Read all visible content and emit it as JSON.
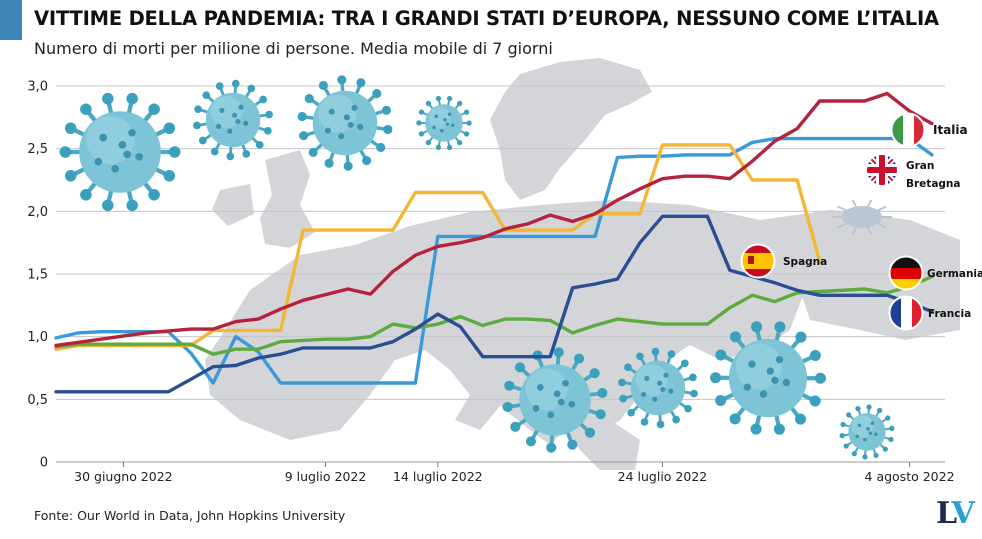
{
  "header": {
    "title": "VITTIME DELLA PANDEMIA: TRA I GRANDI STATI D’EUROPA, NESSUNO COME L’ITALIA",
    "subtitle": "Numero di morti per milione di persone. Media mobile di 7 giorni",
    "accent_color": "#3f86b8"
  },
  "footer": {
    "source": "Fonte: Our World in Data, John Hopkins University",
    "logo_l": "L",
    "logo_v": "V"
  },
  "chart_data": {
    "type": "line",
    "title": "",
    "xlabel": "",
    "ylabel": "",
    "ylim": [
      0,
      3.0
    ],
    "y_ticks": [
      {
        "value": 0,
        "label": "0"
      },
      {
        "value": 0.5,
        "label": "0,5"
      },
      {
        "value": 1.0,
        "label": "1,0"
      },
      {
        "value": 1.5,
        "label": "1,5"
      },
      {
        "value": 2.0,
        "label": "2,0"
      },
      {
        "value": 2.5,
        "label": "2,5"
      },
      {
        "value": 3.0,
        "label": "3,0"
      }
    ],
    "grid": true,
    "x_start": "2022-06-27",
    "x_end": "2022-08-05",
    "x_ticks": [
      {
        "date": "2022-06-30",
        "label": "30 giugno 2022"
      },
      {
        "date": "2022-07-09",
        "label": "9 luglio 2022"
      },
      {
        "date": "2022-07-14",
        "label": "14 luglio 2022"
      },
      {
        "date": "2022-07-24",
        "label": "24 luglio 2022"
      },
      {
        "date": "2022-08-04",
        "label": "4 agosto 2022"
      }
    ],
    "legend_placement": "right",
    "series": [
      {
        "key": "italia",
        "label_lines": [
          "Italia"
        ],
        "color": "#b5223d",
        "flag": "IT",
        "points": [
          [
            "2022-06-27",
            0.93
          ],
          [
            "2022-06-29",
            0.98
          ],
          [
            "2022-07-01",
            1.03
          ],
          [
            "2022-07-03",
            1.06
          ],
          [
            "2022-07-04",
            1.06
          ],
          [
            "2022-07-05",
            1.12
          ],
          [
            "2022-07-06",
            1.14
          ],
          [
            "2022-07-07",
            1.22
          ],
          [
            "2022-07-08",
            1.29
          ],
          [
            "2022-07-10",
            1.38
          ],
          [
            "2022-07-11",
            1.34
          ],
          [
            "2022-07-12",
            1.52
          ],
          [
            "2022-07-13",
            1.65
          ],
          [
            "2022-07-14",
            1.72
          ],
          [
            "2022-07-15",
            1.75
          ],
          [
            "2022-07-16",
            1.79
          ],
          [
            "2022-07-17",
            1.86
          ],
          [
            "2022-07-18",
            1.9
          ],
          [
            "2022-07-19",
            1.97
          ],
          [
            "2022-07-20",
            1.92
          ],
          [
            "2022-07-21",
            1.98
          ],
          [
            "2022-07-22",
            2.09
          ],
          [
            "2022-07-23",
            2.18
          ],
          [
            "2022-07-24",
            2.26
          ],
          [
            "2022-07-25",
            2.28
          ],
          [
            "2022-07-26",
            2.28
          ],
          [
            "2022-07-27",
            2.26
          ],
          [
            "2022-07-28",
            2.4
          ],
          [
            "2022-07-29",
            2.56
          ],
          [
            "2022-07-30",
            2.66
          ],
          [
            "2022-07-31",
            2.88
          ],
          [
            "2022-08-01",
            2.88
          ],
          [
            "2022-08-02",
            2.88
          ],
          [
            "2022-08-03",
            2.94
          ],
          [
            "2022-08-04",
            2.8
          ],
          [
            "2022-08-05",
            2.7
          ]
        ]
      },
      {
        "key": "gran_bretagna",
        "label_lines": [
          "Gran",
          "Bretagna"
        ],
        "color": "#3a9ad9",
        "flag": "GB",
        "points": [
          [
            "2022-06-27",
            0.99
          ],
          [
            "2022-06-28",
            1.03
          ],
          [
            "2022-06-29",
            1.04
          ],
          [
            "2022-06-30",
            1.04
          ],
          [
            "2022-07-01",
            1.04
          ],
          [
            "2022-07-02",
            1.04
          ],
          [
            "2022-07-03",
            0.87
          ],
          [
            "2022-07-04",
            0.63
          ],
          [
            "2022-07-05",
            1.0
          ],
          [
            "2022-07-06",
            0.88
          ],
          [
            "2022-07-07",
            0.63
          ],
          [
            "2022-07-08",
            0.63
          ],
          [
            "2022-07-09",
            0.63
          ],
          [
            "2022-07-10",
            0.63
          ],
          [
            "2022-07-11",
            0.63
          ],
          [
            "2022-07-12",
            0.63
          ],
          [
            "2022-07-13",
            0.63
          ],
          [
            "2022-07-14",
            1.8
          ],
          [
            "2022-07-15",
            1.8
          ],
          [
            "2022-07-16",
            1.8
          ],
          [
            "2022-07-17",
            1.8
          ],
          [
            "2022-07-18",
            1.8
          ],
          [
            "2022-07-19",
            1.8
          ],
          [
            "2022-07-20",
            1.8
          ],
          [
            "2022-07-21",
            1.8
          ],
          [
            "2022-07-22",
            2.43
          ],
          [
            "2022-07-23",
            2.44
          ],
          [
            "2022-07-24",
            2.44
          ],
          [
            "2022-07-25",
            2.45
          ],
          [
            "2022-07-26",
            2.45
          ],
          [
            "2022-07-27",
            2.45
          ],
          [
            "2022-07-28",
            2.55
          ],
          [
            "2022-07-29",
            2.58
          ],
          [
            "2022-07-30",
            2.58
          ],
          [
            "2022-07-31",
            2.58
          ],
          [
            "2022-08-01",
            2.58
          ],
          [
            "2022-08-02",
            2.58
          ],
          [
            "2022-08-03",
            2.58
          ],
          [
            "2022-08-04",
            2.58
          ],
          [
            "2022-08-05",
            2.45
          ]
        ]
      },
      {
        "key": "spagna",
        "label_lines": [
          "Spagna"
        ],
        "color": "#f3b733",
        "flag": "ES",
        "points": [
          [
            "2022-06-27",
            0.9
          ],
          [
            "2022-06-28",
            0.93
          ],
          [
            "2022-06-29",
            0.93
          ],
          [
            "2022-06-30",
            0.93
          ],
          [
            "2022-07-01",
            0.93
          ],
          [
            "2022-07-02",
            0.93
          ],
          [
            "2022-07-03",
            0.93
          ],
          [
            "2022-07-04",
            1.05
          ],
          [
            "2022-07-05",
            1.05
          ],
          [
            "2022-07-06",
            1.05
          ],
          [
            "2022-07-07",
            1.05
          ],
          [
            "2022-07-08",
            1.85
          ],
          [
            "2022-07-09",
            1.85
          ],
          [
            "2022-07-10",
            1.85
          ],
          [
            "2022-07-11",
            1.85
          ],
          [
            "2022-07-12",
            1.85
          ],
          [
            "2022-07-13",
            2.15
          ],
          [
            "2022-07-14",
            2.15
          ],
          [
            "2022-07-15",
            2.15
          ],
          [
            "2022-07-16",
            2.15
          ],
          [
            "2022-07-17",
            1.85
          ],
          [
            "2022-07-18",
            1.85
          ],
          [
            "2022-07-19",
            1.85
          ],
          [
            "2022-07-20",
            1.85
          ],
          [
            "2022-07-21",
            1.98
          ],
          [
            "2022-07-22",
            1.98
          ],
          [
            "2022-07-23",
            1.98
          ],
          [
            "2022-07-24",
            2.53
          ],
          [
            "2022-07-25",
            2.53
          ],
          [
            "2022-07-26",
            2.53
          ],
          [
            "2022-07-27",
            2.53
          ],
          [
            "2022-07-28",
            2.25
          ],
          [
            "2022-07-29",
            2.25
          ],
          [
            "2022-07-30",
            2.25
          ],
          [
            "2022-07-31",
            1.6
          ]
        ]
      },
      {
        "key": "germania",
        "label_lines": [
          "Germania"
        ],
        "color": "#5daa3e",
        "flag": "DE",
        "points": [
          [
            "2022-06-27",
            0.92
          ],
          [
            "2022-06-28",
            0.94
          ],
          [
            "2022-06-30",
            0.94
          ],
          [
            "2022-07-02",
            0.94
          ],
          [
            "2022-07-03",
            0.94
          ],
          [
            "2022-07-04",
            0.86
          ],
          [
            "2022-07-05",
            0.9
          ],
          [
            "2022-07-06",
            0.9
          ],
          [
            "2022-07-07",
            0.96
          ],
          [
            "2022-07-09",
            0.98
          ],
          [
            "2022-07-10",
            0.98
          ],
          [
            "2022-07-11",
            1.0
          ],
          [
            "2022-07-12",
            1.1
          ],
          [
            "2022-07-13",
            1.07
          ],
          [
            "2022-07-14",
            1.1
          ],
          [
            "2022-07-15",
            1.16
          ],
          [
            "2022-07-16",
            1.09
          ],
          [
            "2022-07-17",
            1.14
          ],
          [
            "2022-07-18",
            1.14
          ],
          [
            "2022-07-19",
            1.13
          ],
          [
            "2022-07-20",
            1.03
          ],
          [
            "2022-07-21",
            1.09
          ],
          [
            "2022-07-22",
            1.14
          ],
          [
            "2022-07-23",
            1.12
          ],
          [
            "2022-07-24",
            1.1
          ],
          [
            "2022-07-25",
            1.1
          ],
          [
            "2022-07-26",
            1.1
          ],
          [
            "2022-07-27",
            1.23
          ],
          [
            "2022-07-28",
            1.33
          ],
          [
            "2022-07-29",
            1.28
          ],
          [
            "2022-07-30",
            1.35
          ],
          [
            "2022-07-31",
            1.36
          ],
          [
            "2022-08-01",
            1.37
          ],
          [
            "2022-08-02",
            1.38
          ],
          [
            "2022-08-03",
            1.35
          ],
          [
            "2022-08-04",
            1.4
          ],
          [
            "2022-08-05",
            1.48
          ]
        ]
      },
      {
        "key": "francia",
        "label_lines": [
          "Francia"
        ],
        "color": "#2a4e94",
        "flag": "FR",
        "points": [
          [
            "2022-06-27",
            0.56
          ],
          [
            "2022-06-28",
            0.56
          ],
          [
            "2022-06-30",
            0.56
          ],
          [
            "2022-07-02",
            0.56
          ],
          [
            "2022-07-03",
            0.66
          ],
          [
            "2022-07-04",
            0.76
          ],
          [
            "2022-07-05",
            0.77
          ],
          [
            "2022-07-06",
            0.83
          ],
          [
            "2022-07-07",
            0.86
          ],
          [
            "2022-07-08",
            0.91
          ],
          [
            "2022-07-09",
            0.91
          ],
          [
            "2022-07-10",
            0.91
          ],
          [
            "2022-07-11",
            0.91
          ],
          [
            "2022-07-12",
            0.96
          ],
          [
            "2022-07-13",
            1.06
          ],
          [
            "2022-07-14",
            1.18
          ],
          [
            "2022-07-15",
            1.08
          ],
          [
            "2022-07-16",
            0.84
          ],
          [
            "2022-07-17",
            0.84
          ],
          [
            "2022-07-18",
            0.84
          ],
          [
            "2022-07-19",
            0.84
          ],
          [
            "2022-07-20",
            1.39
          ],
          [
            "2022-07-21",
            1.42
          ],
          [
            "2022-07-22",
            1.46
          ],
          [
            "2022-07-23",
            1.75
          ],
          [
            "2022-07-24",
            1.96
          ],
          [
            "2022-07-25",
            1.96
          ],
          [
            "2022-07-26",
            1.96
          ],
          [
            "2022-07-27",
            1.53
          ],
          [
            "2022-07-28",
            1.48
          ],
          [
            "2022-07-29",
            1.43
          ],
          [
            "2022-07-30",
            1.37
          ],
          [
            "2022-07-31",
            1.33
          ],
          [
            "2022-08-01",
            1.33
          ],
          [
            "2022-08-02",
            1.33
          ],
          [
            "2022-08-03",
            1.33
          ],
          [
            "2022-08-04",
            1.27
          ],
          [
            "2022-08-05",
            1.2
          ]
        ]
      }
    ]
  }
}
